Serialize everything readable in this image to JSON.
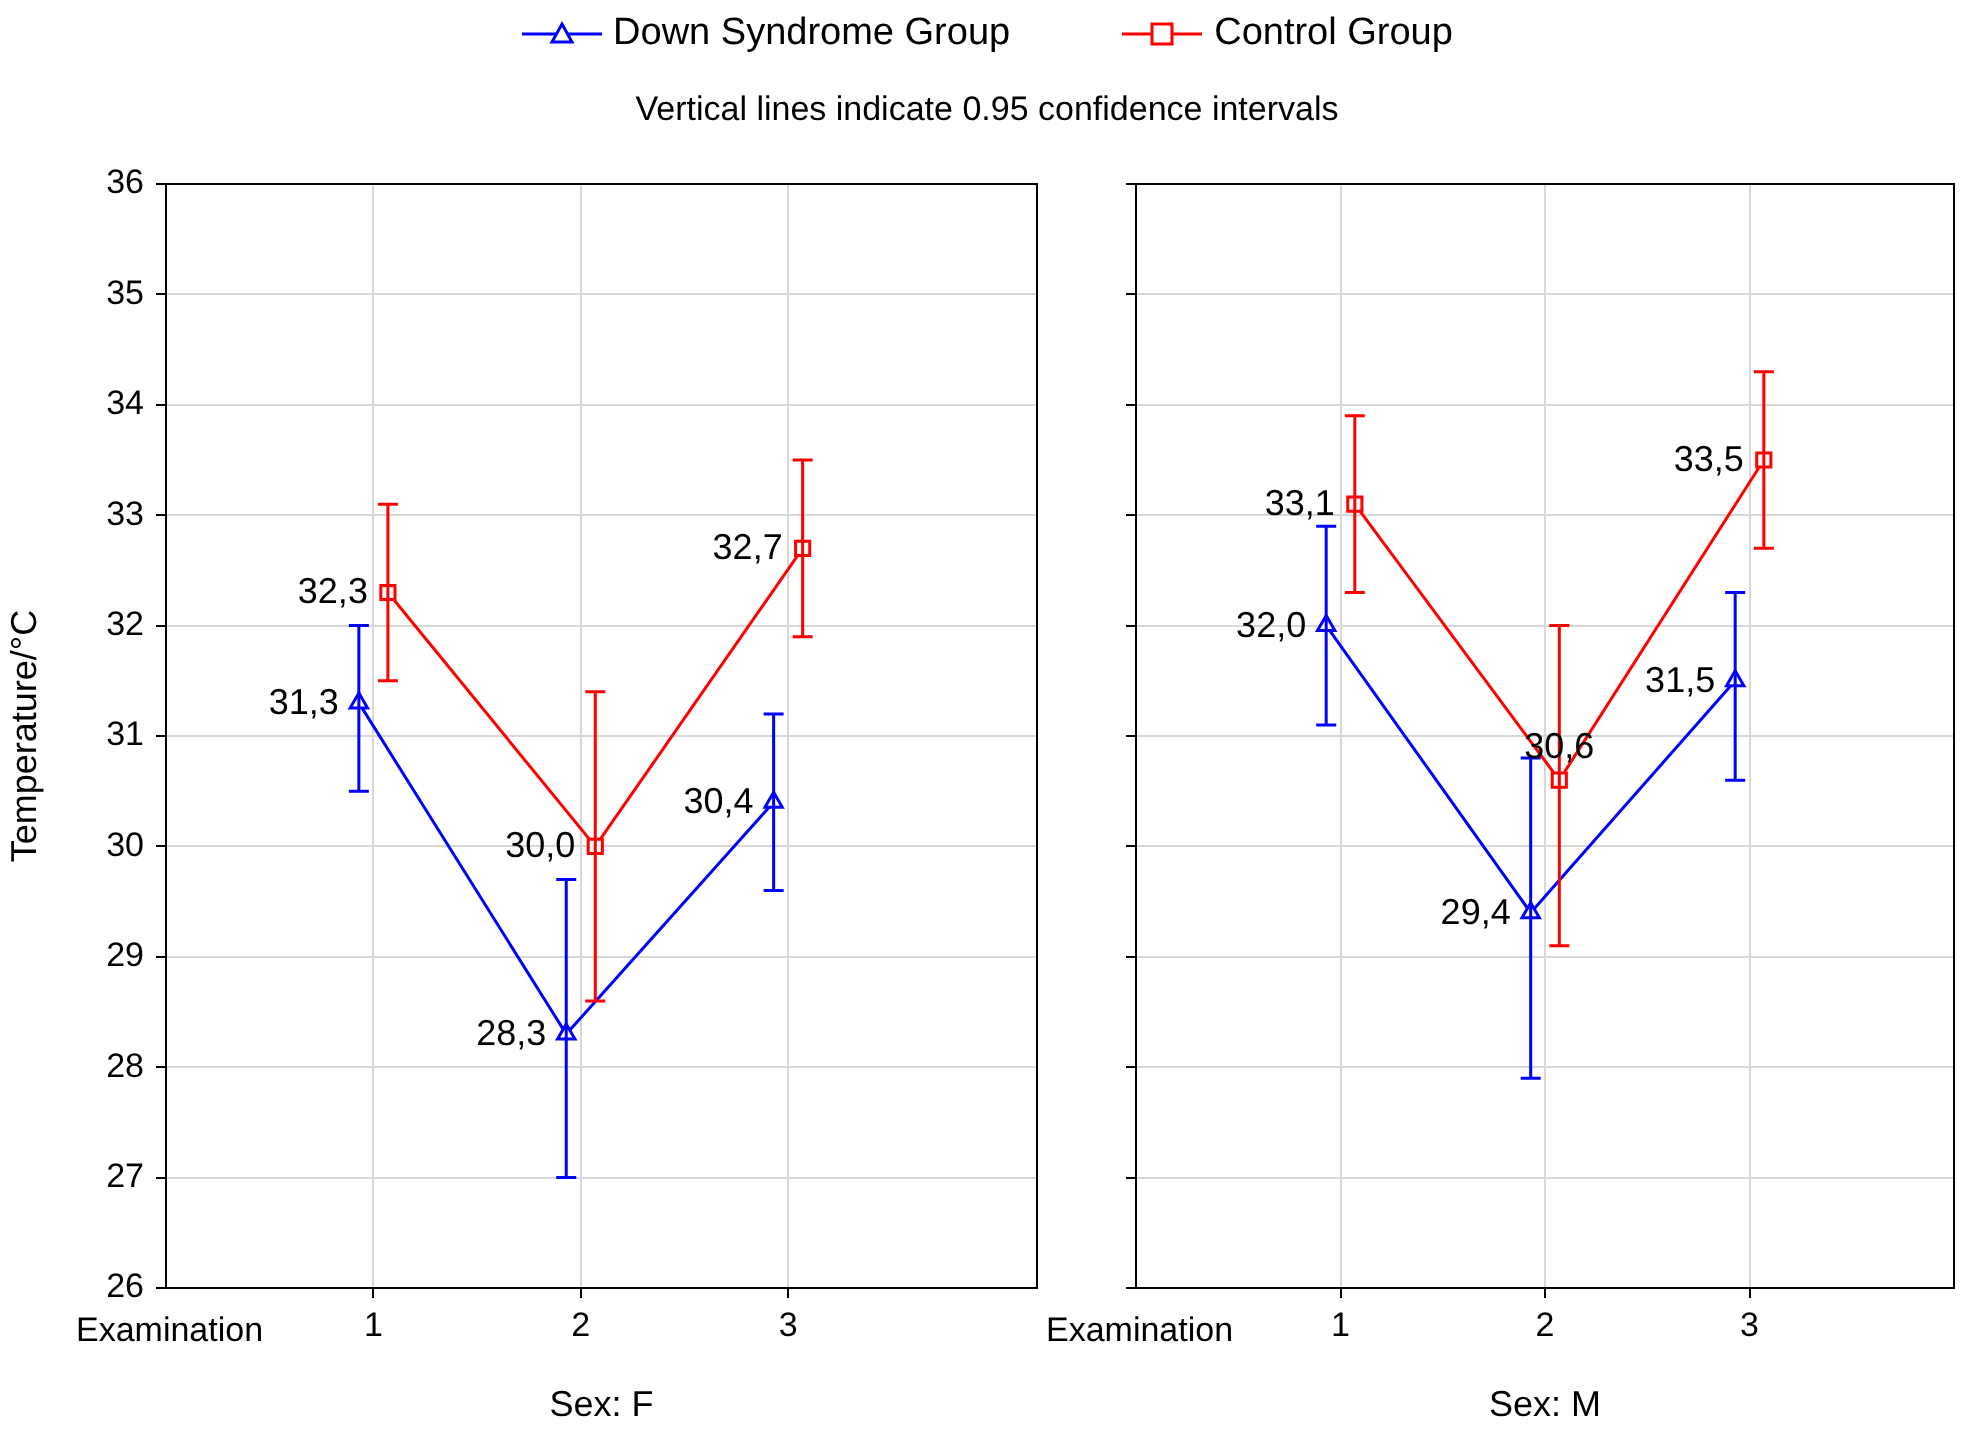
{
  "chart_data": [
    {
      "type": "line",
      "subtitle": "Vertical lines indicate 0.95 confidence intervals",
      "xlabel": "Sex: F",
      "ylabel": "Temperature/°C",
      "annotations": [
        "Examination"
      ],
      "xlim": [
        0,
        4.2
      ],
      "xticks": [
        1,
        2,
        3
      ],
      "ylim": [
        26,
        36
      ],
      "yticks": [
        26,
        27,
        28,
        29,
        30,
        31,
        32,
        33,
        34,
        35,
        36
      ],
      "grid": true,
      "legend": "top",
      "series": [
        {
          "name": "Down Syndrome Group",
          "color": "#0000ff",
          "marker": "triangle",
          "x": [
            0.93,
            1.93,
            2.93
          ],
          "values": [
            31.3,
            28.3,
            30.4
          ],
          "value_labels": [
            "31,3",
            "28,3",
            "30,4"
          ],
          "errors": [
            [
              30.5,
              32.0
            ],
            [
              27.0,
              29.7
            ],
            [
              29.6,
              31.2
            ]
          ]
        },
        {
          "name": "Control Group",
          "color": "#ff0000",
          "marker": "square",
          "x": [
            1.07,
            2.07,
            3.07
          ],
          "values": [
            32.3,
            30.0,
            32.7
          ],
          "value_labels": [
            "32,3",
            "30,0",
            "32,7"
          ],
          "errors": [
            [
              31.5,
              33.1
            ],
            [
              28.6,
              31.4
            ],
            [
              31.9,
              33.5
            ]
          ]
        }
      ]
    },
    {
      "type": "line",
      "xlabel": "Sex: M",
      "annotations": [
        "Examination"
      ],
      "xlim": [
        0,
        4
      ],
      "xticks": [
        1,
        2,
        3
      ],
      "ylim": [
        26,
        36
      ],
      "yticks": [
        26,
        27,
        28,
        29,
        30,
        31,
        32,
        33,
        34,
        35,
        36
      ],
      "grid": true,
      "tick_labels": "x",
      "series": [
        {
          "color": "#0000ff",
          "marker": "triangle",
          "x": [
            0.93,
            1.93,
            2.93
          ],
          "values": [
            32.0,
            29.4,
            31.5
          ],
          "value_labels": [
            "32,0",
            "29,4",
            "31,5"
          ],
          "errors": [
            [
              31.1,
              32.9
            ],
            [
              27.9,
              30.8
            ],
            [
              30.6,
              32.3
            ]
          ]
        },
        {
          "color": "#ff0000",
          "marker": "square",
          "x": [
            1.07,
            2.07,
            3.07
          ],
          "values": [
            33.1,
            30.6,
            33.5
          ],
          "value_labels": [
            "33,1",
            "30,6",
            "33,5"
          ],
          "errors": [
            [
              32.3,
              33.9
            ],
            [
              29.1,
              32.0
            ],
            [
              32.7,
              34.3
            ]
          ]
        }
      ]
    }
  ]
}
